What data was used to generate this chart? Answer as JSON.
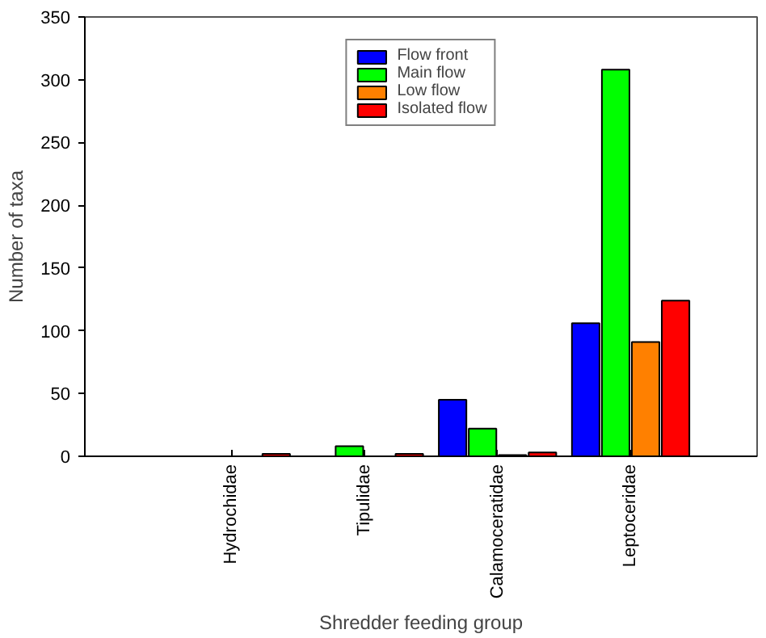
{
  "chart_data": {
    "type": "bar",
    "xlabel": "Shredder feeding group",
    "ylabel": "Number of taxa",
    "categories": [
      "Hydrochidae",
      "Tipulidae",
      "Calamoceratidae",
      "Leptoceridae"
    ],
    "series": [
      {
        "name": "Flow front",
        "color": "#0000ff",
        "values": [
          null,
          null,
          45,
          106
        ]
      },
      {
        "name": "Main flow",
        "color": "#00ff00",
        "values": [
          null,
          8,
          22,
          308
        ]
      },
      {
        "name": "Low flow",
        "color": "#ff8000",
        "values": [
          null,
          null,
          1,
          91
        ]
      },
      {
        "name": "Isolated flow",
        "color": "#ff0000",
        "values": [
          2,
          2,
          3,
          124
        ]
      }
    ],
    "ylim": [
      0,
      350
    ],
    "yticks": [
      0,
      50,
      100,
      150,
      200,
      250,
      300,
      350
    ],
    "grid": false,
    "legend": "top"
  }
}
